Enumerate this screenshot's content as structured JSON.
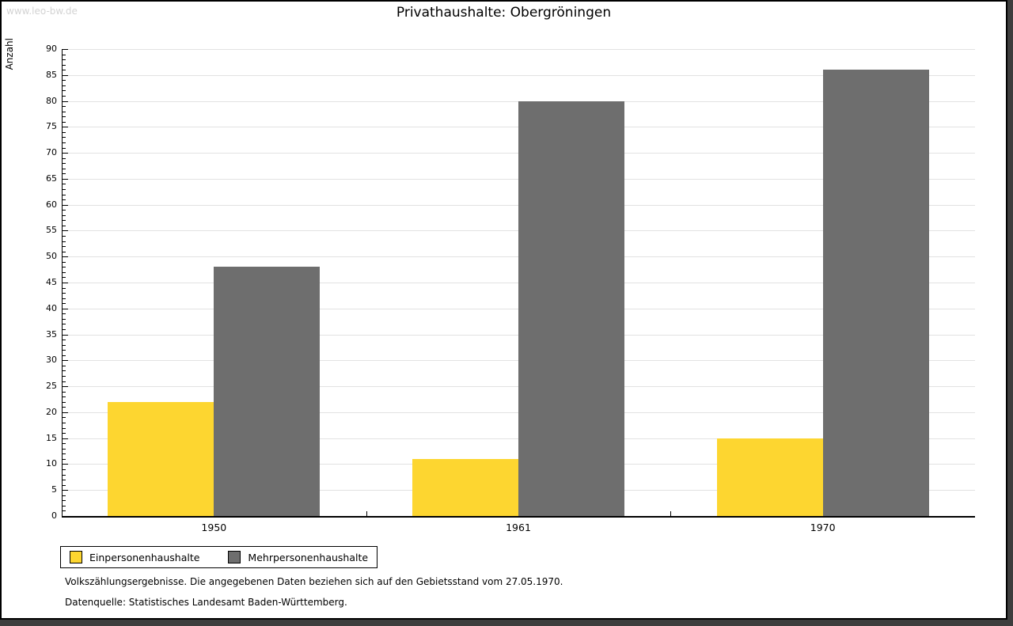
{
  "page": {
    "watermark": "www.leo-bw.de",
    "title": "Privathaushalte: Obergröningen"
  },
  "chart_data": {
    "type": "bar",
    "title": "Privathaushalte: Obergröningen",
    "categories": [
      "1950",
      "1961",
      "1970"
    ],
    "series": [
      {
        "name": "Einpersonenhaushalte",
        "color": "#FDD630",
        "values": [
          22,
          11,
          15
        ]
      },
      {
        "name": "Mehrpersonenhaushalte",
        "color": "#6E6E6E",
        "values": [
          48,
          80,
          86
        ]
      }
    ],
    "xlabel": "",
    "ylabel": "Anzahl",
    "ylim": [
      0,
      90
    ],
    "ytick_step": 5,
    "yminor_step": 1,
    "grid": true,
    "gridline_color": "#E2E2E2",
    "legend_position": "bottom-left"
  },
  "footer": {
    "note": "Volkszählungsergebnisse. Die angegebenen Daten beziehen sich auf den Gebietsstand vom 27.05.1970.",
    "source": "Datenquelle: Statistisches Landesamt Baden-Württemberg."
  }
}
